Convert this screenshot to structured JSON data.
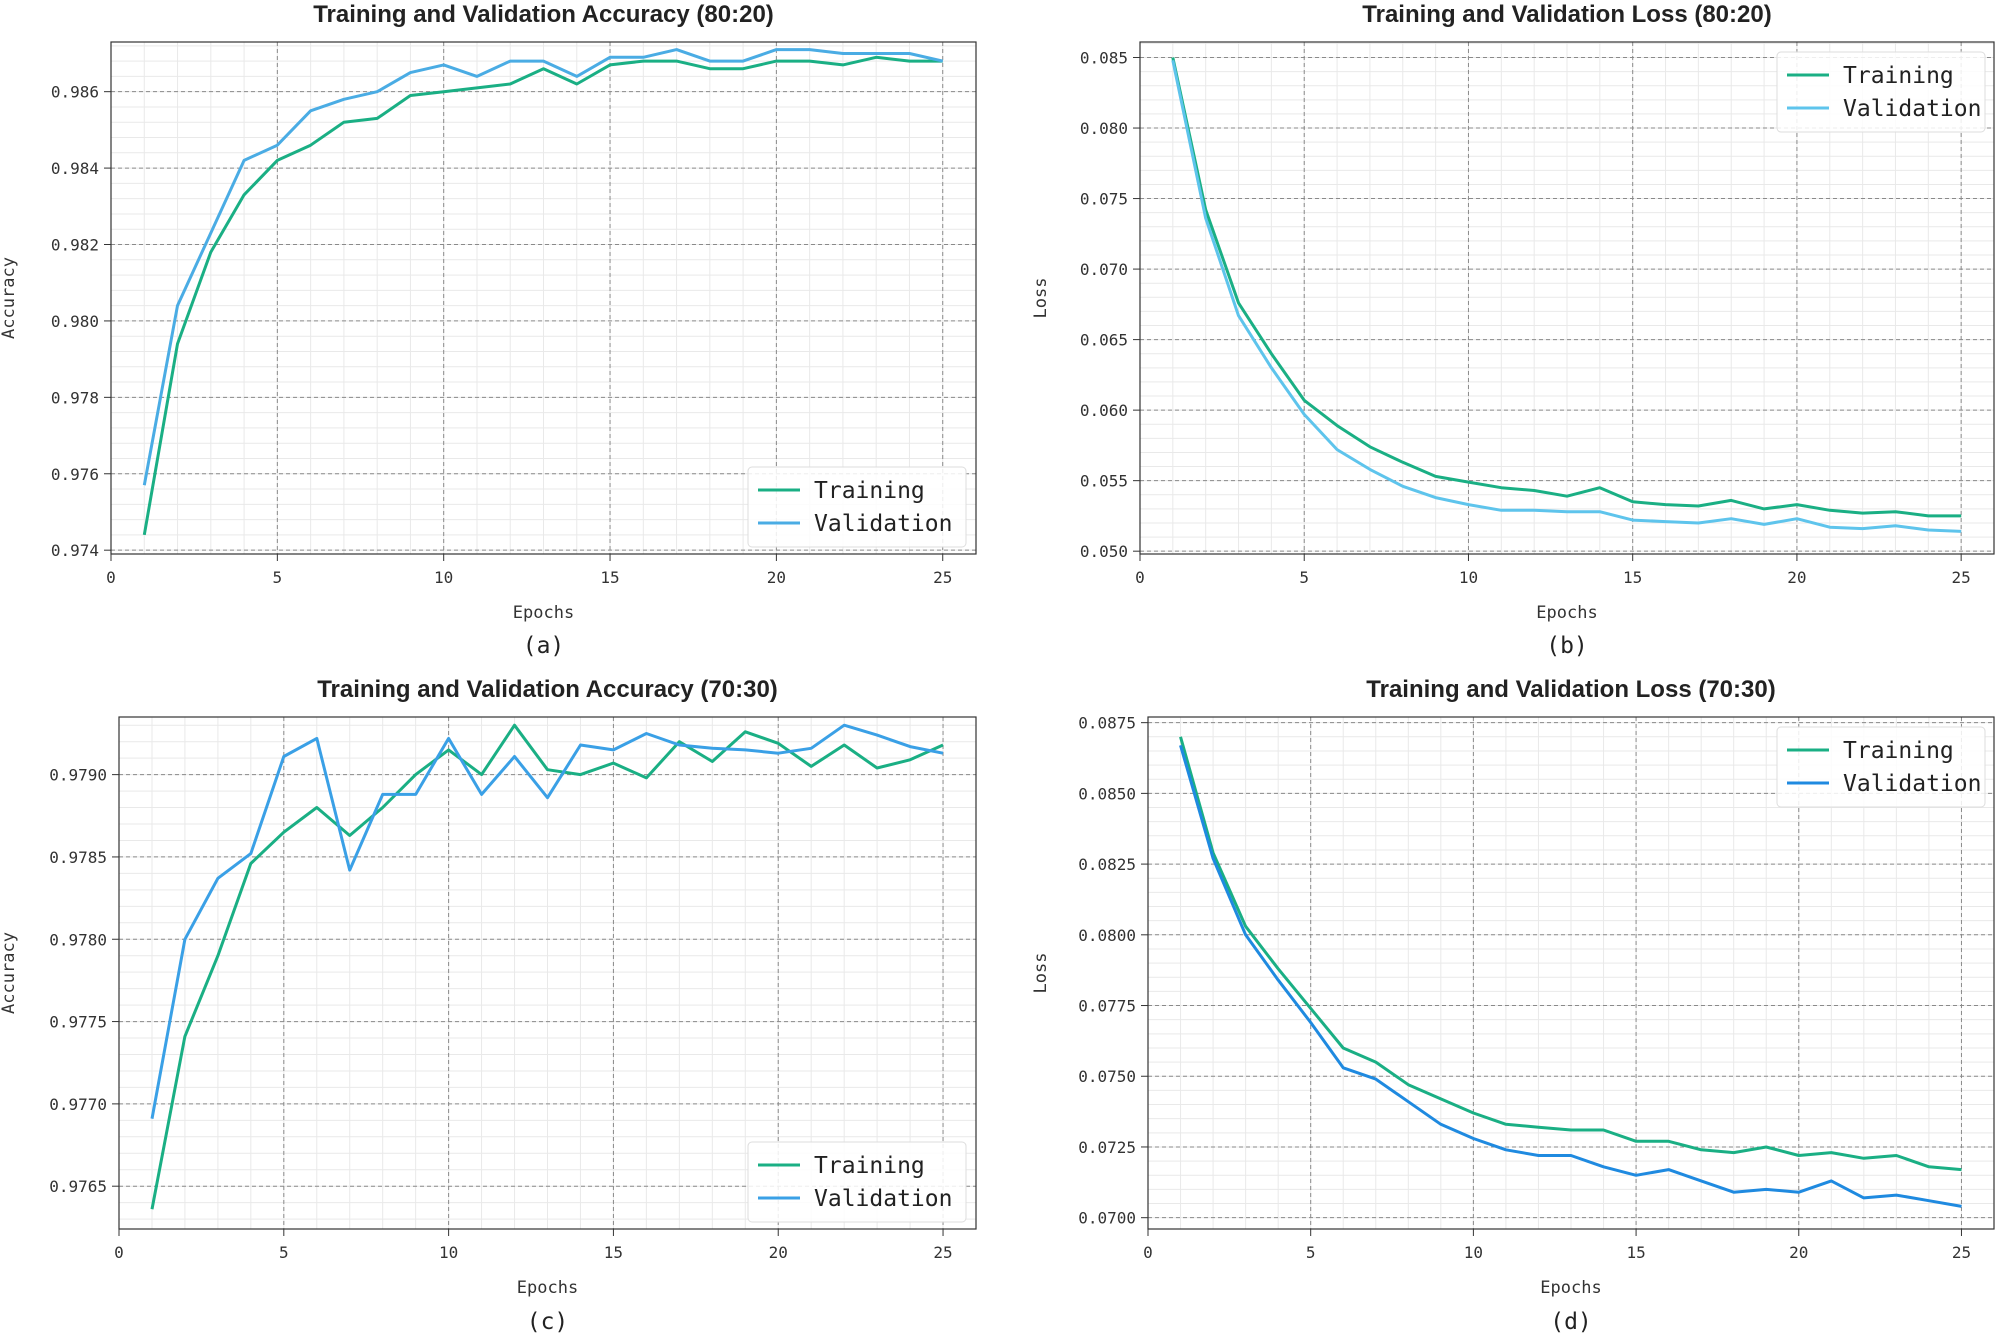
{
  "chart_data": [
    {
      "type": "line",
      "caption": "(a)",
      "title": "Training and Validation Accuracy (80:20)",
      "xlabel": "Epochs",
      "ylabel": "Accuracy",
      "xlim": [
        0,
        26
      ],
      "ylim": [
        0.9739,
        0.9873
      ],
      "xticks": [
        0,
        5,
        10,
        15,
        20,
        25
      ],
      "xtick_labels": [
        "0",
        "5",
        "10",
        "15",
        "20",
        "25"
      ],
      "yticks": [
        0.974,
        0.976,
        0.978,
        0.98,
        0.982,
        0.984,
        0.986
      ],
      "ytick_labels": [
        "0.974",
        "0.976",
        "0.978",
        "0.980",
        "0.982",
        "0.984",
        "0.986"
      ],
      "legend_position": "lower-right",
      "grid": true,
      "x": [
        1,
        2,
        3,
        4,
        5,
        6,
        7,
        8,
        9,
        10,
        11,
        12,
        13,
        14,
        15,
        16,
        17,
        18,
        19,
        20,
        21,
        22,
        23,
        24,
        25
      ],
      "series": [
        {
          "name": "Training",
          "color": "#1aaf84",
          "values": [
            0.9744,
            0.9794,
            0.9818,
            0.9833,
            0.9842,
            0.9846,
            0.9852,
            0.9853,
            0.9859,
            0.986,
            0.9861,
            0.9862,
            0.9866,
            0.9862,
            0.9867,
            0.9868,
            0.9868,
            0.9866,
            0.9866,
            0.9868,
            0.9868,
            0.9867,
            0.9869,
            0.9868,
            0.9868
          ]
        },
        {
          "name": "Validation",
          "color": "#4aace4",
          "values": [
            0.9757,
            0.9804,
            0.9823,
            0.9842,
            0.9846,
            0.9855,
            0.9858,
            0.986,
            0.9865,
            0.9867,
            0.9864,
            0.9868,
            0.9868,
            0.9864,
            0.9869,
            0.9869,
            0.9871,
            0.9868,
            0.9868,
            0.9871,
            0.9871,
            0.987,
            0.987,
            0.987,
            0.9868
          ]
        }
      ]
    },
    {
      "type": "line",
      "caption": "(b)",
      "title": "Training and Validation Loss (80:20)",
      "xlabel": "Epochs",
      "ylabel": "Loss",
      "xlim": [
        0,
        26
      ],
      "ylim": [
        0.0498,
        0.0861
      ],
      "xticks": [
        0,
        5,
        10,
        15,
        20,
        25
      ],
      "xtick_labels": [
        "0",
        "5",
        "10",
        "15",
        "20",
        "25"
      ],
      "yticks": [
        0.05,
        0.055,
        0.06,
        0.065,
        0.07,
        0.075,
        0.08,
        0.085
      ],
      "ytick_labels": [
        "0.050",
        "0.055",
        "0.060",
        "0.065",
        "0.070",
        "0.075",
        "0.080",
        "0.085"
      ],
      "legend_position": "top-right",
      "grid": true,
      "x": [
        1,
        2,
        3,
        4,
        5,
        6,
        7,
        8,
        9,
        10,
        11,
        12,
        13,
        14,
        15,
        16,
        17,
        18,
        19,
        20,
        21,
        22,
        23,
        24,
        25
      ],
      "series": [
        {
          "name": "Training",
          "color": "#1aaf84",
          "values": [
            0.085,
            0.0742,
            0.0676,
            0.064,
            0.0607,
            0.0589,
            0.0574,
            0.0563,
            0.0553,
            0.0549,
            0.0545,
            0.0543,
            0.0539,
            0.0545,
            0.0535,
            0.0533,
            0.0532,
            0.0536,
            0.053,
            0.0533,
            0.0529,
            0.0527,
            0.0528,
            0.0525,
            0.0525
          ]
        },
        {
          "name": "Validation",
          "color": "#5ec4ec",
          "values": [
            0.0848,
            0.0736,
            0.0667,
            0.063,
            0.0597,
            0.0572,
            0.0558,
            0.0546,
            0.0538,
            0.0533,
            0.0529,
            0.0529,
            0.0528,
            0.0528,
            0.0522,
            0.0521,
            0.052,
            0.0523,
            0.0519,
            0.0523,
            0.0517,
            0.0516,
            0.0518,
            0.0515,
            0.0514
          ]
        }
      ]
    },
    {
      "type": "line",
      "caption": "(c)",
      "title": "Training and Validation Accuracy (70:30)",
      "xlabel": "Epochs",
      "ylabel": "Accuracy",
      "xlim": [
        0,
        26
      ],
      "ylim": [
        0.97624,
        0.97935
      ],
      "xticks": [
        0,
        5,
        10,
        15,
        20,
        25
      ],
      "xtick_labels": [
        "0",
        "5",
        "10",
        "15",
        "20",
        "25"
      ],
      "yticks": [
        0.9765,
        0.977,
        0.9775,
        0.978,
        0.9785,
        0.979
      ],
      "ytick_labels": [
        "0.9765",
        "0.9770",
        "0.9775",
        "0.9780",
        "0.9785",
        "0.9790"
      ],
      "legend_position": "lower-right",
      "grid": true,
      "x": [
        1,
        2,
        3,
        4,
        5,
        6,
        7,
        8,
        9,
        10,
        11,
        12,
        13,
        14,
        15,
        16,
        17,
        18,
        19,
        20,
        21,
        22,
        23,
        24,
        25
      ],
      "series": [
        {
          "name": "Training",
          "color": "#1aaf84",
          "values": [
            0.97636,
            0.97741,
            0.9779,
            0.97846,
            0.97865,
            0.9788,
            0.97863,
            0.9788,
            0.979,
            0.97915,
            0.979,
            0.9793,
            0.97903,
            0.979,
            0.97907,
            0.97898,
            0.9792,
            0.97908,
            0.97926,
            0.97919,
            0.97905,
            0.97918,
            0.97904,
            0.97909,
            0.97918
          ]
        },
        {
          "name": "Validation",
          "color": "#3aa0e6",
          "values": [
            0.97691,
            0.978,
            0.97837,
            0.97852,
            0.97911,
            0.97922,
            0.97842,
            0.97888,
            0.97888,
            0.97922,
            0.97888,
            0.97911,
            0.97886,
            0.97918,
            0.97915,
            0.97925,
            0.97918,
            0.97916,
            0.97915,
            0.97913,
            0.97916,
            0.9793,
            0.97924,
            0.97917,
            0.97913
          ]
        }
      ]
    },
    {
      "type": "line",
      "caption": "(d)",
      "title": "Training and Validation Loss (70:30)",
      "xlabel": "Epochs",
      "ylabel": "Loss",
      "xlim": [
        0,
        26
      ],
      "ylim": [
        0.0696,
        0.0877
      ],
      "xticks": [
        0,
        5,
        10,
        15,
        20,
        25
      ],
      "xtick_labels": [
        "0",
        "5",
        "10",
        "15",
        "20",
        "25"
      ],
      "yticks": [
        0.07,
        0.0725,
        0.075,
        0.0775,
        0.08,
        0.0825,
        0.085,
        0.0875
      ],
      "ytick_labels": [
        "0.0700",
        "0.0725",
        "0.0750",
        "0.0775",
        "0.0800",
        "0.0825",
        "0.0850",
        "0.0875"
      ],
      "legend_position": "top-right",
      "grid": true,
      "x": [
        1,
        2,
        3,
        4,
        5,
        6,
        7,
        8,
        9,
        10,
        11,
        12,
        13,
        14,
        15,
        16,
        17,
        18,
        19,
        20,
        21,
        22,
        23,
        24,
        25
      ],
      "series": [
        {
          "name": "Training",
          "color": "#1aaf84",
          "values": [
            0.087,
            0.0829,
            0.0803,
            0.0788,
            0.0774,
            0.076,
            0.0755,
            0.0747,
            0.0742,
            0.0737,
            0.0733,
            0.0732,
            0.0731,
            0.0731,
            0.0727,
            0.0727,
            0.0724,
            0.0723,
            0.0725,
            0.0722,
            0.0723,
            0.0721,
            0.0722,
            0.0718,
            0.0717
          ]
        },
        {
          "name": "Validation",
          "color": "#1f8ae0",
          "values": [
            0.0867,
            0.0827,
            0.08,
            0.0784,
            0.0769,
            0.0753,
            0.0749,
            0.0741,
            0.0733,
            0.0728,
            0.0724,
            0.0722,
            0.0722,
            0.0718,
            0.0715,
            0.0717,
            0.0713,
            0.0709,
            0.071,
            0.0709,
            0.0713,
            0.0707,
            0.0708,
            0.0706,
            0.0704
          ]
        }
      ]
    }
  ]
}
